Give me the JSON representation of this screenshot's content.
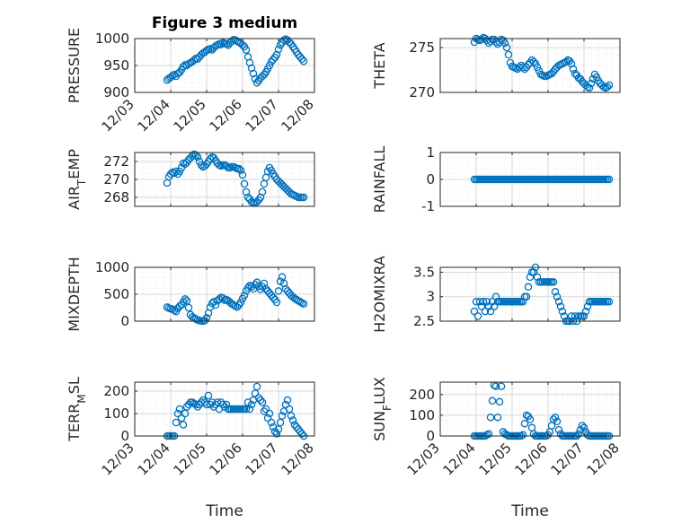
{
  "figure": {
    "title": "Figure 3 medium",
    "xlabel": "Time",
    "marker_color": "#0072BD",
    "axes_color": "#262626",
    "grid_color": "#d9d9d9"
  },
  "chart_data": [
    {
      "type": "scatter",
      "title": "Figure 3 medium",
      "ylabel": "PRESSURE",
      "xlabel": "",
      "xticks": [
        "12/03",
        "12/04",
        "12/05",
        "12/06",
        "12/07",
        "12/08"
      ],
      "xlim": [
        0,
        5
      ],
      "ylim": [
        900,
        1000
      ],
      "yticks": [
        "900",
        "950",
        "1000"
      ],
      "grid": "major+minor",
      "x": [
        0.9,
        0.95,
        1.0,
        1.05,
        1.1,
        1.15,
        1.2,
        1.25,
        1.3,
        1.35,
        1.4,
        1.45,
        1.5,
        1.55,
        1.6,
        1.65,
        1.7,
        1.75,
        1.8,
        1.85,
        1.9,
        1.95,
        2.0,
        2.05,
        2.1,
        2.15,
        2.2,
        2.25,
        2.3,
        2.35,
        2.4,
        2.45,
        2.5,
        2.55,
        2.6,
        2.65,
        2.7,
        2.75,
        2.8,
        2.85,
        2.9,
        2.95,
        3.0,
        3.05,
        3.1,
        3.15,
        3.2,
        3.25,
        3.3,
        3.35,
        3.4,
        3.45,
        3.5,
        3.55,
        3.6,
        3.65,
        3.7,
        3.75,
        3.8,
        3.85,
        3.9,
        3.95,
        4.0,
        4.05,
        4.1,
        4.15,
        4.2,
        4.25,
        4.3,
        4.35,
        4.4,
        4.45,
        4.5,
        4.55,
        4.6,
        4.65,
        4.7
      ],
      "y": [
        923,
        926,
        928,
        931,
        933,
        930,
        935,
        937,
        942,
        948,
        951,
        950,
        953,
        955,
        957,
        960,
        963,
        962,
        966,
        970,
        973,
        975,
        978,
        980,
        981,
        979,
        983,
        986,
        988,
        990,
        989,
        992,
        991,
        990,
        988,
        992,
        995,
        998,
        997,
        995,
        993,
        991,
        988,
        985,
        979,
        966,
        955,
        945,
        935,
        925,
        918,
        922,
        927,
        930,
        933,
        938,
        944,
        950,
        957,
        961,
        965,
        970,
        980,
        988,
        993,
        997,
        999,
        997,
        993,
        990,
        985,
        980,
        975,
        970,
        966,
        962,
        958
      ]
    },
    {
      "type": "scatter",
      "ylabel": "THETA",
      "xticks": [],
      "xlim": [
        0,
        5
      ],
      "ylim": [
        270,
        276
      ],
      "yticks": [
        "270",
        "275"
      ],
      "grid": "major+minor",
      "x": [
        0.95,
        1.0,
        1.05,
        1.1,
        1.15,
        1.2,
        1.25,
        1.3,
        1.35,
        1.4,
        1.45,
        1.5,
        1.55,
        1.6,
        1.65,
        1.7,
        1.75,
        1.8,
        1.85,
        1.9,
        1.95,
        2.0,
        2.05,
        2.1,
        2.15,
        2.2,
        2.25,
        2.3,
        2.35,
        2.4,
        2.45,
        2.5,
        2.55,
        2.6,
        2.65,
        2.7,
        2.75,
        2.8,
        2.85,
        2.9,
        2.95,
        3.0,
        3.05,
        3.1,
        3.15,
        3.2,
        3.25,
        3.3,
        3.35,
        3.4,
        3.45,
        3.5,
        3.55,
        3.6,
        3.65,
        3.7,
        3.75,
        3.8,
        3.85,
        3.9,
        3.95,
        4.0,
        4.05,
        4.1,
        4.15,
        4.2,
        4.25,
        4.3,
        4.35,
        4.4,
        4.45,
        4.5,
        4.55,
        4.6,
        4.65,
        4.7
      ],
      "y": [
        275.6,
        276.0,
        275.9,
        275.8,
        275.9,
        276.1,
        276.0,
        275.8,
        275.5,
        275.7,
        275.9,
        275.9,
        275.6,
        275.4,
        275.6,
        275.9,
        275.8,
        275.5,
        275.0,
        274.2,
        273.3,
        272.9,
        272.8,
        272.7,
        272.6,
        272.8,
        273.0,
        272.8,
        272.6,
        272.8,
        273.1,
        273.3,
        273.6,
        273.4,
        273.2,
        272.8,
        272.4,
        272.0,
        271.9,
        271.8,
        271.8,
        271.9,
        272.0,
        272.1,
        272.3,
        272.6,
        272.8,
        273.0,
        273.1,
        273.2,
        273.3,
        273.4,
        273.6,
        273.5,
        273.2,
        272.6,
        272.1,
        271.9,
        271.6,
        271.5,
        271.2,
        271.0,
        270.8,
        270.6,
        270.5,
        271.0,
        271.5,
        272.0,
        271.7,
        271.3,
        271.0,
        270.8,
        270.6,
        270.5,
        270.6,
        270.8
      ]
    },
    {
      "type": "scatter",
      "ylabel": "AIR_TEMP",
      "xticks": [],
      "xlim": [
        0,
        5
      ],
      "ylim": [
        267,
        273
      ],
      "yticks": [
        "268",
        "270",
        "272"
      ],
      "grid": "major+minor",
      "x": [
        0.9,
        0.95,
        1.0,
        1.05,
        1.1,
        1.15,
        1.2,
        1.25,
        1.3,
        1.35,
        1.4,
        1.45,
        1.5,
        1.55,
        1.6,
        1.65,
        1.7,
        1.75,
        1.8,
        1.85,
        1.9,
        1.95,
        2.0,
        2.05,
        2.1,
        2.15,
        2.2,
        2.25,
        2.3,
        2.35,
        2.4,
        2.45,
        2.5,
        2.55,
        2.6,
        2.65,
        2.7,
        2.75,
        2.8,
        2.85,
        2.9,
        2.95,
        3.0,
        3.05,
        3.1,
        3.15,
        3.2,
        3.25,
        3.3,
        3.35,
        3.4,
        3.45,
        3.5,
        3.55,
        3.6,
        3.65,
        3.7,
        3.75,
        3.8,
        3.85,
        3.9,
        3.95,
        4.0,
        4.05,
        4.1,
        4.15,
        4.2,
        4.25,
        4.3,
        4.35,
        4.4,
        4.45,
        4.5,
        4.55,
        4.6,
        4.65,
        4.7
      ],
      "y": [
        269.6,
        270.3,
        270.6,
        270.8,
        270.7,
        270.9,
        270.6,
        270.9,
        271.3,
        271.8,
        271.7,
        271.9,
        272.2,
        272.4,
        272.6,
        272.8,
        272.7,
        272.5,
        272.0,
        271.6,
        271.4,
        271.5,
        271.7,
        272.0,
        272.3,
        272.5,
        272.4,
        272.1,
        271.8,
        271.6,
        271.5,
        271.6,
        271.6,
        271.5,
        271.3,
        271.3,
        271.4,
        271.4,
        271.3,
        271.2,
        271.2,
        271.0,
        270.5,
        269.5,
        268.6,
        268.0,
        267.8,
        267.5,
        267.4,
        267.4,
        267.5,
        267.7,
        268.0,
        268.6,
        269.5,
        270.2,
        270.9,
        271.3,
        271.0,
        270.6,
        270.3,
        270.0,
        269.8,
        269.6,
        269.4,
        269.2,
        269.0,
        268.8,
        268.6,
        268.4,
        268.3,
        268.2,
        268.1,
        268.0,
        268.0,
        268.0,
        268.0
      ]
    },
    {
      "type": "scatter",
      "ylabel": "RAINFALL",
      "xticks": [],
      "xlim": [
        0,
        5
      ],
      "ylim": [
        -1,
        1
      ],
      "yticks": [
        "-1",
        "0",
        "1"
      ],
      "grid": "major+minor",
      "x_start": 0.95,
      "x_end": 4.7,
      "x_step": 0.05,
      "y_constant": 0
    },
    {
      "type": "scatter",
      "ylabel": "MIXDEPTH",
      "xticks": [],
      "xlim": [
        0,
        5
      ],
      "ylim": [
        0,
        1000
      ],
      "yticks": [
        "0",
        "500",
        "1000"
      ],
      "grid": "major+minor",
      "x": [
        0.9,
        0.95,
        1.0,
        1.05,
        1.1,
        1.15,
        1.2,
        1.25,
        1.3,
        1.35,
        1.4,
        1.45,
        1.5,
        1.55,
        1.6,
        1.65,
        1.7,
        1.75,
        1.8,
        1.85,
        1.9,
        1.95,
        2.0,
        2.05,
        2.1,
        2.15,
        2.2,
        2.25,
        2.3,
        2.35,
        2.4,
        2.45,
        2.5,
        2.55,
        2.6,
        2.65,
        2.7,
        2.75,
        2.8,
        2.85,
        2.9,
        2.95,
        3.0,
        3.05,
        3.1,
        3.15,
        3.2,
        3.25,
        3.3,
        3.35,
        3.4,
        3.45,
        3.5,
        3.55,
        3.6,
        3.65,
        3.7,
        3.75,
        3.8,
        3.85,
        3.9,
        3.95,
        4.0,
        4.05,
        4.1,
        4.15,
        4.2,
        4.25,
        4.3,
        4.35,
        4.4,
        4.45,
        4.5,
        4.55,
        4.6,
        4.65,
        4.7
      ],
      "y": [
        260,
        240,
        230,
        220,
        200,
        180,
        240,
        280,
        300,
        360,
        410,
        380,
        250,
        120,
        80,
        60,
        40,
        20,
        10,
        5,
        0,
        10,
        60,
        150,
        260,
        330,
        360,
        300,
        380,
        410,
        440,
        430,
        390,
        400,
        380,
        350,
        320,
        300,
        280,
        260,
        300,
        350,
        420,
        480,
        560,
        620,
        660,
        640,
        600,
        680,
        720,
        650,
        590,
        640,
        700,
        600,
        560,
        520,
        480,
        440,
        400,
        350,
        560,
        740,
        820,
        700,
        600,
        560,
        520,
        480,
        450,
        420,
        400,
        380,
        360,
        340,
        320
      ]
    },
    {
      "type": "scatter",
      "ylabel": "H2OMIXRA",
      "xticks": [],
      "xlim": [
        0,
        5
      ],
      "ylim": [
        2.5,
        3.6
      ],
      "yticks": [
        "2.5",
        "3",
        "3.5"
      ],
      "grid": "major+minor",
      "x": [
        0.95,
        1.0,
        1.05,
        1.1,
        1.15,
        1.2,
        1.25,
        1.3,
        1.35,
        1.4,
        1.45,
        1.5,
        1.55,
        1.6,
        1.65,
        1.7,
        1.75,
        1.8,
        1.85,
        1.9,
        1.95,
        2.0,
        2.05,
        2.1,
        2.15,
        2.2,
        2.25,
        2.3,
        2.35,
        2.4,
        2.45,
        2.5,
        2.55,
        2.6,
        2.65,
        2.7,
        2.75,
        2.8,
        2.85,
        2.9,
        2.95,
        3.0,
        3.05,
        3.1,
        3.15,
        3.2,
        3.25,
        3.3,
        3.35,
        3.4,
        3.45,
        3.5,
        3.55,
        3.6,
        3.65,
        3.7,
        3.75,
        3.8,
        3.85,
        3.9,
        3.95,
        4.0,
        4.05,
        4.1,
        4.15,
        4.2,
        4.25,
        4.3,
        4.35,
        4.4,
        4.45,
        4.5,
        4.55,
        4.6,
        4.65,
        4.7
      ],
      "y": [
        2.7,
        2.9,
        2.6,
        2.9,
        2.8,
        2.9,
        2.7,
        2.9,
        2.8,
        2.7,
        2.9,
        2.8,
        3.0,
        2.9,
        2.9,
        2.9,
        2.9,
        2.9,
        2.9,
        2.9,
        2.9,
        2.9,
        2.9,
        2.9,
        2.9,
        2.9,
        2.9,
        2.9,
        3.0,
        3.0,
        3.2,
        3.4,
        3.5,
        3.5,
        3.6,
        3.4,
        3.3,
        3.3,
        3.3,
        3.3,
        3.3,
        3.3,
        3.3,
        3.3,
        3.3,
        3.1,
        3.0,
        2.9,
        2.8,
        2.7,
        2.6,
        2.5,
        2.5,
        2.5,
        2.6,
        2.5,
        2.6,
        2.5,
        2.6,
        2.6,
        2.6,
        2.6,
        2.7,
        2.8,
        2.9,
        2.9,
        2.9,
        2.9,
        2.9,
        2.9,
        2.9,
        2.9,
        2.9,
        2.9,
        2.9,
        2.9
      ]
    },
    {
      "type": "scatter",
      "ylabel": "TERR_MSL",
      "xticks": [
        "12/03",
        "12/04",
        "12/05",
        "12/06",
        "12/07",
        "12/08"
      ],
      "xlim": [
        0,
        5
      ],
      "ylim": [
        0,
        240
      ],
      "yticks": [
        "0",
        "100",
        "200"
      ],
      "grid": "major+minor",
      "x": [
        0.9,
        0.95,
        1.0,
        1.05,
        1.1,
        1.15,
        1.2,
        1.25,
        1.3,
        1.35,
        1.4,
        1.45,
        1.5,
        1.55,
        1.6,
        1.65,
        1.7,
        1.75,
        1.8,
        1.85,
        1.9,
        1.95,
        2.0,
        2.05,
        2.1,
        2.15,
        2.2,
        2.25,
        2.3,
        2.35,
        2.4,
        2.45,
        2.5,
        2.55,
        2.6,
        2.65,
        2.7,
        2.75,
        2.8,
        2.85,
        2.9,
        2.95,
        3.0,
        3.05,
        3.1,
        3.15,
        3.2,
        3.25,
        3.3,
        3.35,
        3.4,
        3.45,
        3.5,
        3.55,
        3.6,
        3.65,
        3.7,
        3.75,
        3.8,
        3.85,
        3.9,
        3.95,
        4.0,
        4.05,
        4.1,
        4.15,
        4.2,
        4.25,
        4.3,
        4.35,
        4.4,
        4.45,
        4.5,
        4.55,
        4.6,
        4.65,
        4.7
      ],
      "y": [
        0,
        0,
        0,
        0,
        0,
        60,
        100,
        120,
        80,
        50,
        100,
        130,
        140,
        150,
        150,
        145,
        140,
        130,
        140,
        150,
        160,
        150,
        140,
        180,
        140,
        150,
        130,
        140,
        150,
        120,
        150,
        140,
        130,
        140,
        120,
        120,
        120,
        120,
        120,
        120,
        120,
        120,
        120,
        120,
        120,
        150,
        120,
        140,
        160,
        190,
        220,
        170,
        160,
        150,
        110,
        120,
        80,
        100,
        60,
        40,
        20,
        10,
        30,
        60,
        90,
        110,
        140,
        160,
        120,
        90,
        70,
        50,
        40,
        30,
        20,
        10,
        0
      ]
    },
    {
      "type": "scatter",
      "ylabel": "SUN_FLUX",
      "xticks": [
        "12/03",
        "12/04",
        "12/05",
        "12/06",
        "12/07",
        "12/08"
      ],
      "xlim": [
        0,
        5
      ],
      "ylim": [
        0,
        260
      ],
      "yticks": [
        "0",
        "100",
        "200"
      ],
      "grid": "major+minor",
      "x": [
        0.95,
        1.0,
        1.05,
        1.1,
        1.15,
        1.2,
        1.25,
        1.3,
        1.35,
        1.4,
        1.45,
        1.5,
        1.55,
        1.6,
        1.65,
        1.7,
        1.75,
        1.8,
        1.85,
        1.9,
        1.95,
        2.0,
        2.05,
        2.1,
        2.15,
        2.2,
        2.25,
        2.3,
        2.35,
        2.4,
        2.45,
        2.5,
        2.55,
        2.6,
        2.65,
        2.7,
        2.75,
        2.8,
        2.85,
        2.9,
        2.95,
        3.0,
        3.05,
        3.1,
        3.15,
        3.2,
        3.25,
        3.3,
        3.35,
        3.4,
        3.45,
        3.5,
        3.55,
        3.6,
        3.65,
        3.7,
        3.75,
        3.8,
        3.85,
        3.9,
        3.95,
        4.0,
        4.05,
        4.1,
        4.15,
        4.2,
        4.25,
        4.3,
        4.35,
        4.4,
        4.45,
        4.5,
        4.55,
        4.6,
        4.65,
        4.7
      ],
      "y": [
        0,
        0,
        0,
        0,
        0,
        0,
        0,
        5,
        10,
        90,
        170,
        245,
        240,
        90,
        165,
        240,
        20,
        10,
        5,
        0,
        0,
        0,
        0,
        0,
        0,
        0,
        0,
        5,
        60,
        100,
        95,
        80,
        40,
        10,
        0,
        0,
        0,
        0,
        0,
        0,
        0,
        5,
        20,
        50,
        80,
        90,
        70,
        30,
        10,
        0,
        0,
        0,
        0,
        0,
        0,
        0,
        0,
        0,
        10,
        30,
        50,
        40,
        20,
        5,
        0,
        0,
        0,
        0,
        0,
        0,
        0,
        0,
        0,
        0,
        0,
        0
      ]
    }
  ]
}
